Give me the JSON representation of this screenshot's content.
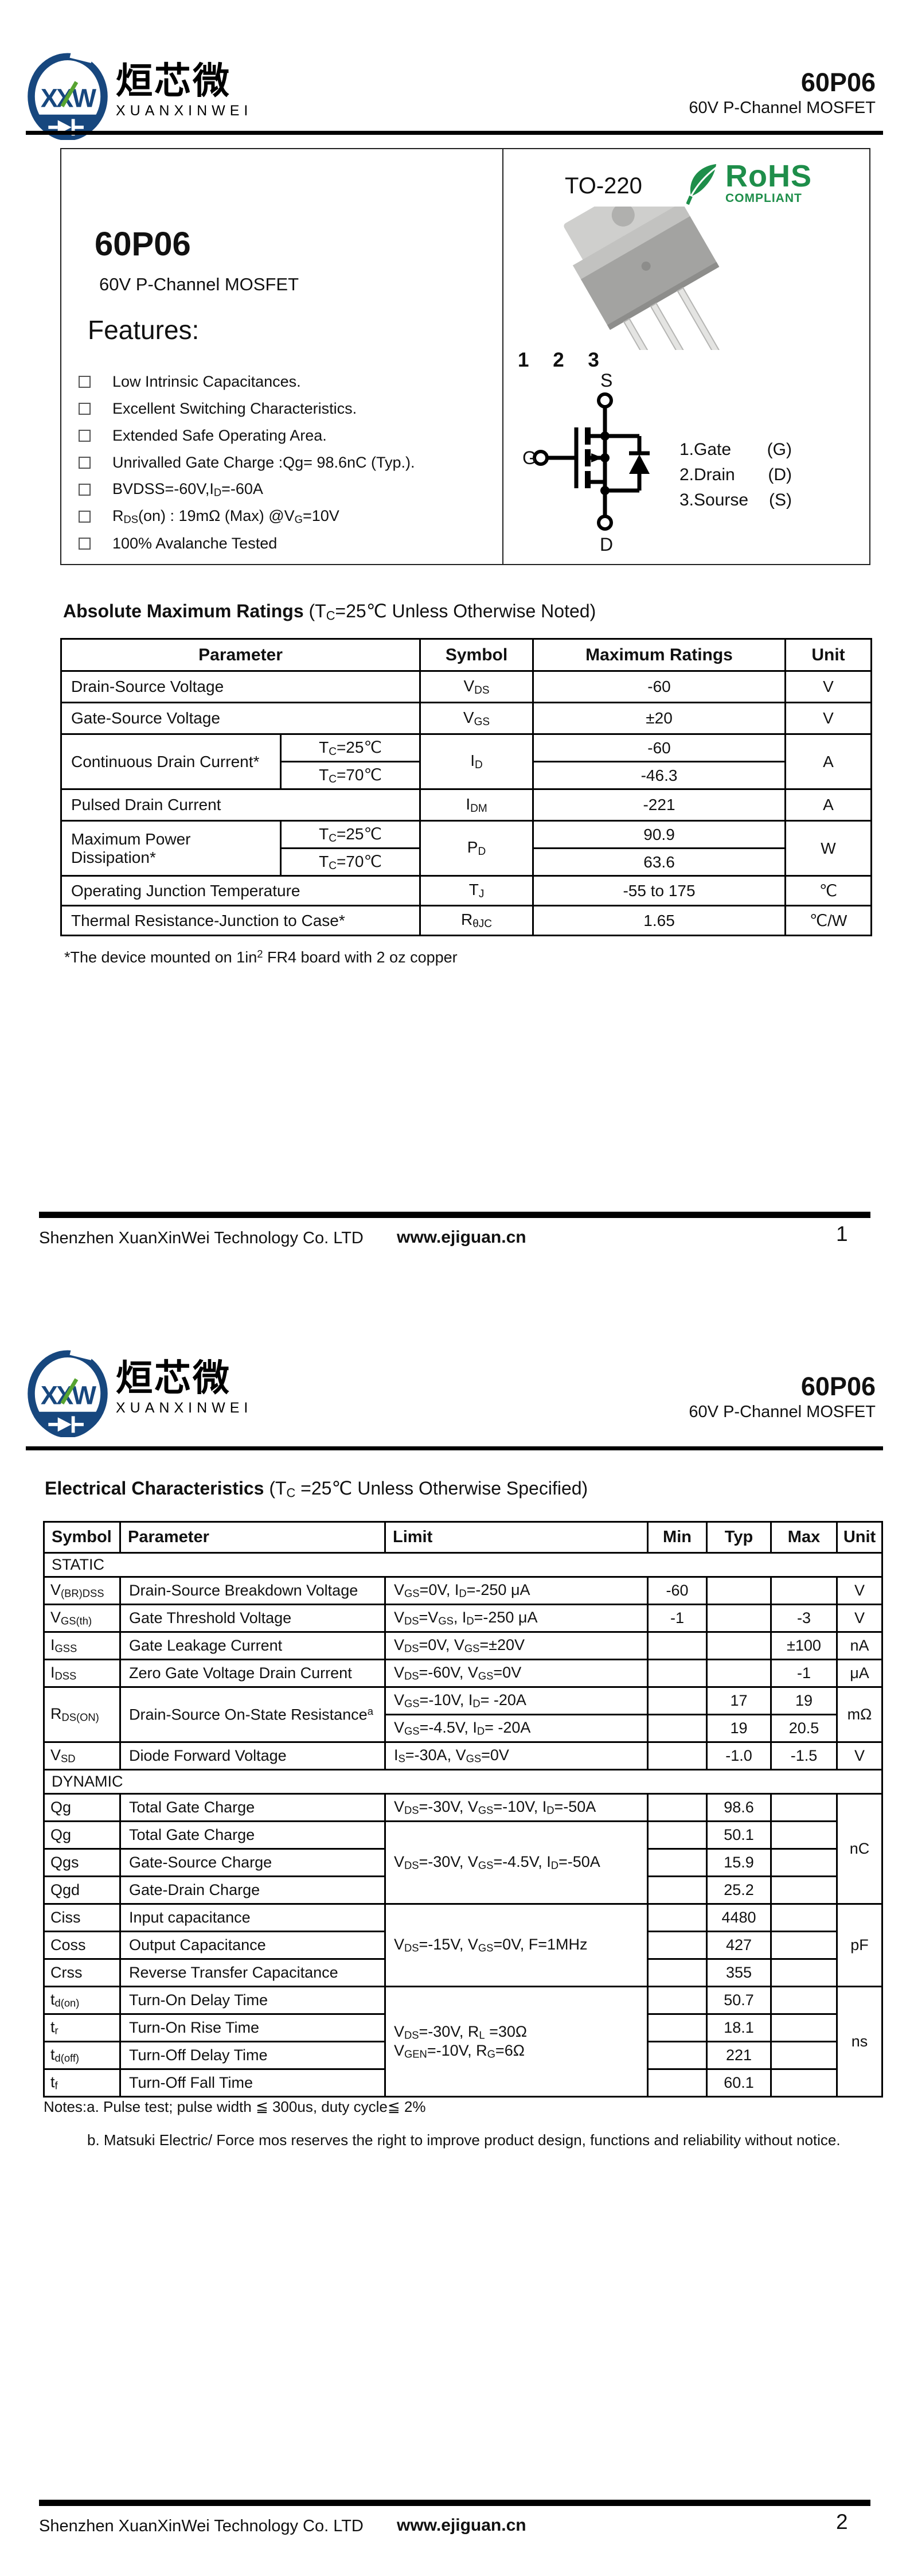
{
  "header": {
    "brand_cn": "烜芯微",
    "brand_en": "XUANXINWEI",
    "logo_monogram": "XXW",
    "part_number": "60P06",
    "part_subtitle": "60V P-Channel MOSFET"
  },
  "hero": {
    "part_number": "60P06",
    "subtitle": "60V P-Channel MOSFET",
    "features_title": "Features:",
    "features": [
      "Low Intrinsic Capacitances.",
      "Excellent Switching Characteristics.",
      "Extended Safe Operating Area.",
      "Unrivalled Gate Charge :Qg= 98.6nC (Typ.).",
      "BVDSS=-60V,I<sub>D</sub>=-60A",
      "R<sub>DS</sub>(on) : 19mΩ (Max) @V<sub>G</sub>=10V",
      "100% Avalanche Tested"
    ],
    "package_name": "TO-220",
    "rohs_line1": "RoHS",
    "rohs_line2": "COMPLIANT",
    "pin_numbers": "1 2 3",
    "symbol_s": "S",
    "symbol_g": "G",
    "symbol_d": "D",
    "pin_legend": [
      {
        "name": "1.Gate",
        "pin": "(G)"
      },
      {
        "name": "2.Drain",
        "pin": "(D)"
      },
      {
        "name": "3.Sourse",
        "pin": "(S)"
      }
    ]
  },
  "amr": {
    "title": "Absolute Maximum Ratings ",
    "condition": "(T<sub>C</sub>=25℃ Unless Otherwise Noted)",
    "headers": [
      "Parameter",
      "Symbol",
      "Maximum Ratings",
      "Unit"
    ],
    "rows": {
      "dsv": {
        "param": "Drain-Source Voltage",
        "symbol": "V<sub>DS</sub>",
        "value": "-60",
        "unit": "V"
      },
      "gsv": {
        "param": "Gate-Source Voltage",
        "symbol": "V<sub>GS</sub>",
        "value": "±20",
        "unit": "V"
      },
      "cdc": {
        "param": "Continuous Drain Current*",
        "cond1": "T<sub>C</sub>=25℃",
        "cond2": "T<sub>C</sub>=70℃",
        "symbol": "I<sub>D</sub>",
        "value1": "-60",
        "value2": "-46.3",
        "unit": "A"
      },
      "pdc": {
        "param": "Pulsed Drain Current",
        "symbol": "I<sub>DM</sub>",
        "value": "-221",
        "unit": "A"
      },
      "mpd": {
        "param": "Maximum Power Dissipation*",
        "cond1": "T<sub>C</sub>=25℃",
        "cond2": "T<sub>C</sub>=70℃",
        "symbol": "P<sub>D</sub>",
        "value1": "90.9",
        "value2": "63.6",
        "unit": "W"
      },
      "ojt": {
        "param": "Operating Junction Temperature",
        "symbol": "T<sub>J</sub>",
        "value": "-55 to 175",
        "unit": "℃"
      },
      "trjc": {
        "param": "Thermal Resistance-Junction to Case*",
        "symbol": "R<sub>θJC</sub>",
        "value": "1.65",
        "unit": "℃/W"
      }
    },
    "footnote": "*The device mounted on 1in<sup>2</sup> FR4 board with 2 oz copper"
  },
  "ec": {
    "title": "Electrical Characteristics ",
    "condition": "(T<sub>C</sub> =25℃  Unless Otherwise Specified)",
    "headers": [
      "Symbol",
      "Parameter",
      "Limit",
      "Min",
      "Typ",
      "Max",
      "Unit"
    ],
    "static_label": "STATIC",
    "dynamic_label": "DYNAMIC",
    "rows": {
      "vbrdss": {
        "symbol": "V<sub>(BR)DSS</sub>",
        "param": "Drain-Source Breakdown Voltage",
        "limit": "V<sub>GS</sub>=0V, I<sub>D</sub>=-250 μA",
        "min": "-60",
        "unit": "V"
      },
      "vgsth": {
        "symbol": "V<sub>GS(th)</sub>",
        "param": "Gate Threshold Voltage",
        "limit": "V<sub>DS</sub>=V<sub>GS</sub>, I<sub>D</sub>=-250 μA",
        "min": "-1",
        "max": "-3",
        "unit": "V"
      },
      "igss": {
        "symbol": "I<sub>GSS</sub>",
        "param": "Gate Leakage Current",
        "limit": "V<sub>DS</sub>=0V, V<sub>GS</sub>=±20V",
        "max": "±100",
        "unit": "nA"
      },
      "idss": {
        "symbol": "I<sub>DSS</sub>",
        "param": "Zero Gate Voltage Drain Current",
        "limit": "V<sub>DS</sub>=-60V, V<sub>GS</sub>=0V",
        "max": "-1",
        "unit": "μA"
      },
      "rdson": {
        "symbol": "R<sub>DS(ON)</sub>",
        "param": "Drain-Source On-State Resistance<sup>a</sup>",
        "limit1": "V<sub>GS</sub>=-10V, I<sub>D</sub>= -20A",
        "typ1": "17",
        "max1": "19",
        "limit2": "V<sub>GS</sub>=-4.5V, I<sub>D</sub>= -20A",
        "typ2": "19",
        "max2": "20.5",
        "unit": "mΩ"
      },
      "vsd": {
        "symbol": "V<sub>SD</sub>",
        "param": "Diode Forward Voltage",
        "limit": "I<sub>S</sub>=-30A, V<sub>GS</sub>=0V",
        "typ": "-1.0",
        "max": "-1.5",
        "unit": "V"
      },
      "qg1": {
        "symbol": "Qg",
        "param": "Total Gate Charge",
        "limit": "V<sub>DS</sub>=-30V, V<sub>GS</sub>=-10V, I<sub>D</sub>=-50A",
        "typ": "98.6",
        "unit": "nC"
      },
      "qg2": {
        "symbol": "Qg",
        "param": "Total Gate Charge",
        "limit": "V<sub>DS</sub>=-30V, V<sub>GS</sub>=-4.5V, I<sub>D</sub>=-50A",
        "typ": "50.1"
      },
      "qgs": {
        "symbol": "Qgs",
        "param": "Gate-Source Charge",
        "typ": "15.9"
      },
      "qgd": {
        "symbol": "Qgd",
        "param": "Gate-Drain Charge",
        "typ": "25.2"
      },
      "ciss": {
        "symbol": "Ciss",
        "param": "Input capacitance",
        "limit": "V<sub>DS</sub>=-15V, V<sub>GS</sub>=0V, F=1MHz",
        "typ": "4480",
        "unit": "pF"
      },
      "coss": {
        "symbol": "Coss",
        "param": "Output Capacitance",
        "typ": "427"
      },
      "crss": {
        "symbol": "Crss",
        "param": "Reverse Transfer Capacitance",
        "typ": "355"
      },
      "tdon": {
        "symbol": "t<sub>d(on)</sub>",
        "param": "Turn-On Delay Time",
        "limit": "V<sub>DS</sub>=-30V, R<sub>L</sub> =30Ω<br>V<sub>GEN</sub>=-10V, R<sub>G</sub>=6Ω",
        "typ": "50.7",
        "unit": "ns"
      },
      "tr": {
        "symbol": "t<sub>r</sub>",
        "param": "Turn-On Rise Time",
        "typ": "18.1"
      },
      "tdoff": {
        "symbol": "t<sub>d(off)</sub>",
        "param": "Turn-Off Delay Time",
        "typ": "221"
      },
      "tf": {
        "symbol": "t<sub>f</sub>",
        "param": "Turn-Off Fall Time",
        "typ": "60.1"
      }
    }
  },
  "notes": {
    "line1": "Notes:a. Pulse test; pulse width ≦ 300us, duty cycle≦ 2%",
    "line2": "b. Matsuki Electric/ Force mos reserves the right to improve product design, functions and reliability without notice."
  },
  "footer": {
    "company": "Shenzhen XuanXinWei Technology Co. LTD",
    "website": "www.ejiguan.cn",
    "page1_number": "1",
    "page2_number": "2"
  },
  "colors": {
    "rohs_green": "#1e8e4a",
    "logo_blue": "#17477e",
    "logo_green": "#57a431",
    "ink": "#111111"
  }
}
